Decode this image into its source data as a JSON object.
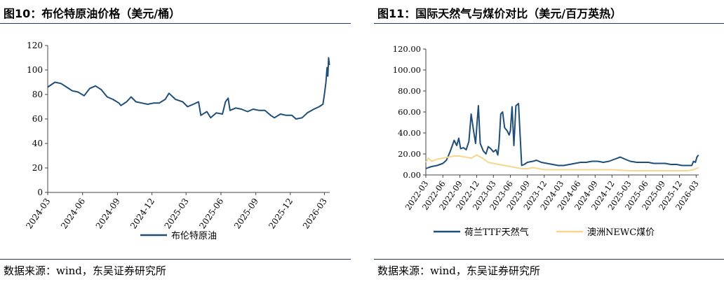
{
  "chart_data": [
    {
      "type": "line",
      "title": "图10：布伦特原油价格（美元/桶）",
      "xlabel": "",
      "ylabel": "",
      "ylim": [
        0,
        120
      ],
      "yticks": [
        "0",
        "20",
        "40",
        "60",
        "80",
        "100",
        "120"
      ],
      "xticks": [
        "2024-03",
        "2024-06",
        "2024-09",
        "2024-12",
        "2025-03",
        "2025-06",
        "2025-09",
        "2025-12",
        "2026-03"
      ],
      "legend": "bottom-center",
      "grid": false,
      "color": "#1f4e79",
      "series": [
        {
          "name": "布伦特原油",
          "x": [
            "2024-03-01",
            "2024-03-20",
            "2024-04-05",
            "2024-04-20",
            "2024-05-05",
            "2024-05-20",
            "2024-06-05",
            "2024-06-20",
            "2024-07-05",
            "2024-07-20",
            "2024-08-05",
            "2024-08-20",
            "2024-09-05",
            "2024-09-10",
            "2024-09-25",
            "2024-10-07",
            "2024-10-20",
            "2024-11-05",
            "2024-11-20",
            "2024-12-05",
            "2024-12-20",
            "2025-01-05",
            "2025-01-15",
            "2025-02-01",
            "2025-02-20",
            "2025-03-05",
            "2025-03-20",
            "2025-04-03",
            "2025-04-09",
            "2025-04-25",
            "2025-05-05",
            "2025-05-20",
            "2025-06-05",
            "2025-06-13",
            "2025-06-20",
            "2025-06-25",
            "2025-07-10",
            "2025-07-25",
            "2025-08-10",
            "2025-08-25",
            "2025-09-10",
            "2025-09-25",
            "2025-10-10",
            "2025-10-20",
            "2025-11-05",
            "2025-11-20",
            "2025-12-05",
            "2025-12-16",
            "2026-01-01",
            "2026-01-15",
            "2026-02-01",
            "2026-02-15",
            "2026-02-25",
            "2026-03-01",
            "2026-03-05",
            "2026-03-08",
            "2026-03-10",
            "2026-03-12",
            "2026-03-14"
          ],
          "values": [
            86,
            90,
            89,
            86,
            83,
            82,
            79,
            85,
            87,
            84,
            78,
            76,
            73,
            71,
            74,
            78,
            74,
            73,
            72,
            73,
            73,
            76,
            81,
            76,
            74,
            70,
            72,
            74,
            63,
            66,
            61,
            65,
            64,
            74,
            77,
            67,
            69,
            68,
            66,
            68,
            67,
            67,
            63,
            61,
            64,
            63,
            63,
            60,
            61,
            65,
            68,
            70,
            72,
            80,
            90,
            102,
            95,
            110,
            104
          ]
        }
      ]
    },
    {
      "type": "line",
      "title": "图11：国际天然气与煤价对比（美元/百万英热）",
      "xlabel": "",
      "ylabel": "",
      "ylim": [
        0,
        120
      ],
      "yticks": [
        "0.00",
        "20.00",
        "40.00",
        "60.00",
        "80.00",
        "100.00",
        "120.00"
      ],
      "xticks": [
        "2022-03",
        "2022-06",
        "2022-09",
        "2022-12",
        "2023-03",
        "2023-06",
        "2023-09",
        "2023-12",
        "2024-03",
        "2024-06",
        "2024-09",
        "2024-12",
        "2025-03",
        "2025-06",
        "2025-09",
        "2025-12",
        "2026-03"
      ],
      "legend": "bottom-center",
      "grid": false,
      "series": [
        {
          "name": "荷兰TTF天然气",
          "color": "#1f4e79",
          "x": [
            "2022-03-01",
            "2022-03-15",
            "2022-04-01",
            "2022-05-01",
            "2022-06-01",
            "2022-06-20",
            "2022-07-10",
            "2022-08-01",
            "2022-08-15",
            "2022-08-26",
            "2022-09-05",
            "2022-09-20",
            "2022-10-05",
            "2022-10-20",
            "2022-11-01",
            "2022-11-15",
            "2022-11-25",
            "2022-12-01",
            "2022-12-10",
            "2022-12-20",
            "2023-01-05",
            "2023-01-20",
            "2023-02-01",
            "2023-02-15",
            "2023-03-01",
            "2023-03-15",
            "2023-03-25",
            "2023-04-01",
            "2023-04-10",
            "2023-04-20",
            "2023-05-01",
            "2023-05-15",
            "2023-05-25",
            "2023-06-01",
            "2023-06-10",
            "2023-06-20",
            "2023-07-01",
            "2023-07-15",
            "2023-08-01",
            "2023-08-15",
            "2023-09-01",
            "2023-10-01",
            "2023-10-20",
            "2023-11-15",
            "2023-12-15",
            "2024-01-15",
            "2024-02-15",
            "2024-03-15",
            "2024-04-15",
            "2024-05-15",
            "2024-06-15",
            "2024-07-15",
            "2024-08-15",
            "2024-09-15",
            "2024-10-15",
            "2024-11-15",
            "2024-12-15",
            "2025-01-15",
            "2025-02-10",
            "2025-03-10",
            "2025-04-15",
            "2025-05-15",
            "2025-06-15",
            "2025-07-15",
            "2025-08-15",
            "2025-09-15",
            "2025-10-15",
            "2025-11-15",
            "2025-12-15",
            "2026-01-15",
            "2026-02-05",
            "2026-02-15",
            "2026-02-25",
            "2026-03-05",
            "2026-03-14"
          ],
          "values": [
            6,
            7,
            8,
            9,
            11,
            14,
            22,
            33,
            28,
            35,
            25,
            26,
            24,
            32,
            58,
            41,
            30,
            45,
            66,
            30,
            23,
            20,
            27,
            25,
            22,
            24,
            19,
            30,
            58,
            60,
            45,
            42,
            38,
            42,
            65,
            28,
            66,
            68,
            9,
            10,
            12,
            13,
            14,
            12,
            11,
            10,
            9,
            9,
            10,
            11,
            12,
            12,
            13,
            13,
            12,
            13,
            15,
            17,
            15,
            13,
            12,
            12,
            12,
            11,
            11,
            11,
            10,
            10,
            9,
            9,
            9,
            13,
            12,
            17,
            19
          ]
        },
        {
          "name": "澳洲NEWC煤价",
          "color": "#f5d78e",
          "x": [
            "2022-03-01",
            "2022-03-15",
            "2022-04-01",
            "2022-05-01",
            "2022-06-01",
            "2022-07-01",
            "2022-08-01",
            "2022-09-01",
            "2022-10-01",
            "2022-11-01",
            "2022-12-01",
            "2023-01-01",
            "2023-02-01",
            "2023-03-01",
            "2023-04-01",
            "2023-05-01",
            "2023-06-01",
            "2023-07-01",
            "2023-08-01",
            "2023-09-01",
            "2023-10-01",
            "2023-11-01",
            "2023-12-01",
            "2024-01-01",
            "2024-03-01",
            "2024-06-01",
            "2024-09-01",
            "2024-12-01",
            "2025-03-01",
            "2025-06-01",
            "2025-09-01",
            "2025-12-01",
            "2026-01-15",
            "2026-02-15",
            "2026-03-14"
          ],
          "values": [
            12,
            16,
            13,
            15,
            16,
            17,
            18,
            18,
            17,
            16,
            19,
            16,
            12,
            11,
            10,
            9,
            8,
            7,
            6,
            6,
            7,
            6,
            5,
            5,
            5,
            5,
            5,
            5,
            4,
            4,
            4,
            4,
            4,
            5,
            7
          ]
        }
      ]
    }
  ],
  "source_left": "数据来源：wind，东吴证券研究所",
  "source_right": "数据来源：wind，东吴证券研究所"
}
